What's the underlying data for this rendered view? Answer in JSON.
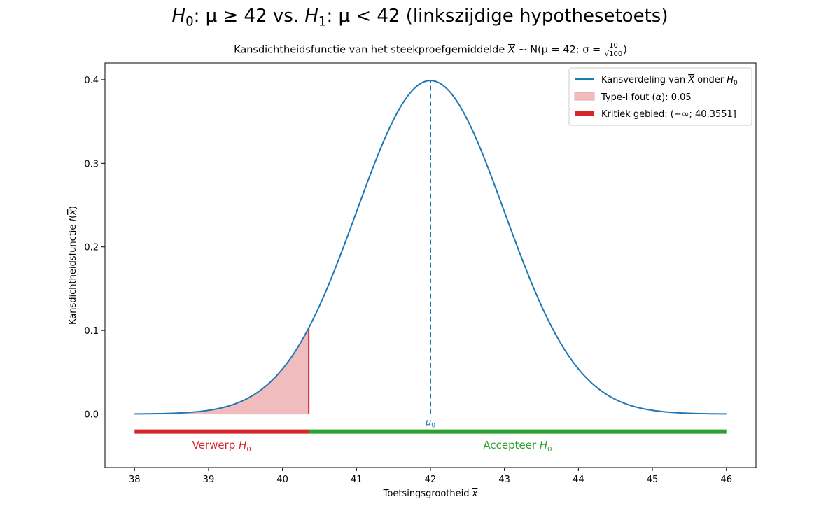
{
  "title": {
    "h0": "H",
    "h0_sub": "0",
    "h0_rel": ": μ ≥ 42 vs. ",
    "h1": "H",
    "h1_sub": "1",
    "h1_rel": ": μ < 42 (linkszijdige hypothesetoets)"
  },
  "subtitle": {
    "text": "Kansdichtheidsfunctie van het steekproefgemiddelde ",
    "xbar": "X",
    "dist": " ~ N(μ = 42; σ = ",
    "frac_num": "10",
    "frac_den": "√100",
    "close": ")"
  },
  "chart_data": {
    "type": "line",
    "distribution": {
      "mu": 42,
      "sigma": 1
    },
    "series": [
      {
        "name": "Kansverdeling van X onder H0",
        "x": [
          38.0,
          38.5,
          39.0,
          39.5,
          40.0,
          40.3551,
          40.5,
          41.0,
          41.5,
          42.0,
          42.5,
          43.0,
          43.5,
          44.0,
          44.5,
          45.0,
          45.5,
          46.0
        ],
        "y": [
          0.0001,
          0.0009,
          0.0044,
          0.0175,
          0.054,
          0.1031,
          0.1295,
          0.242,
          0.3521,
          0.3989,
          0.3521,
          0.242,
          0.1295,
          0.054,
          0.0175,
          0.0044,
          0.0009,
          0.0001
        ],
        "color": "#1f77b4"
      }
    ],
    "alpha": 0.05,
    "critical_value": 40.3551,
    "mu0": 42,
    "xlim": [
      37.6,
      46.4
    ],
    "ylim": [
      -0.064,
      0.42
    ],
    "xticks": [
      38,
      39,
      40,
      41,
      42,
      43,
      44,
      45,
      46
    ],
    "yticks": [
      0.0,
      0.1,
      0.2,
      0.3,
      0.4
    ],
    "xlabel": "Toetsingsgrootheid x̄",
    "ylabel": "Kansdichtheidsfunctie f(x̄)",
    "mu0_label": "μ0",
    "reject_label": "Verwerp H0",
    "accept_label": "Accepteer H0",
    "bar_y": -0.021,
    "label_y": -0.037,
    "legend": {
      "position": "top-right",
      "entries": [
        "Kansverdeling van X̄ onder H0",
        "Type-I fout (α): 0.05",
        "Kritiek gebied: (−∞; 40.3551]"
      ]
    },
    "grid": false,
    "colors": {
      "curve": "#1f77b4",
      "fill": "#f0bcbd",
      "reject": "#d62728",
      "accept": "#2ca02c"
    }
  }
}
